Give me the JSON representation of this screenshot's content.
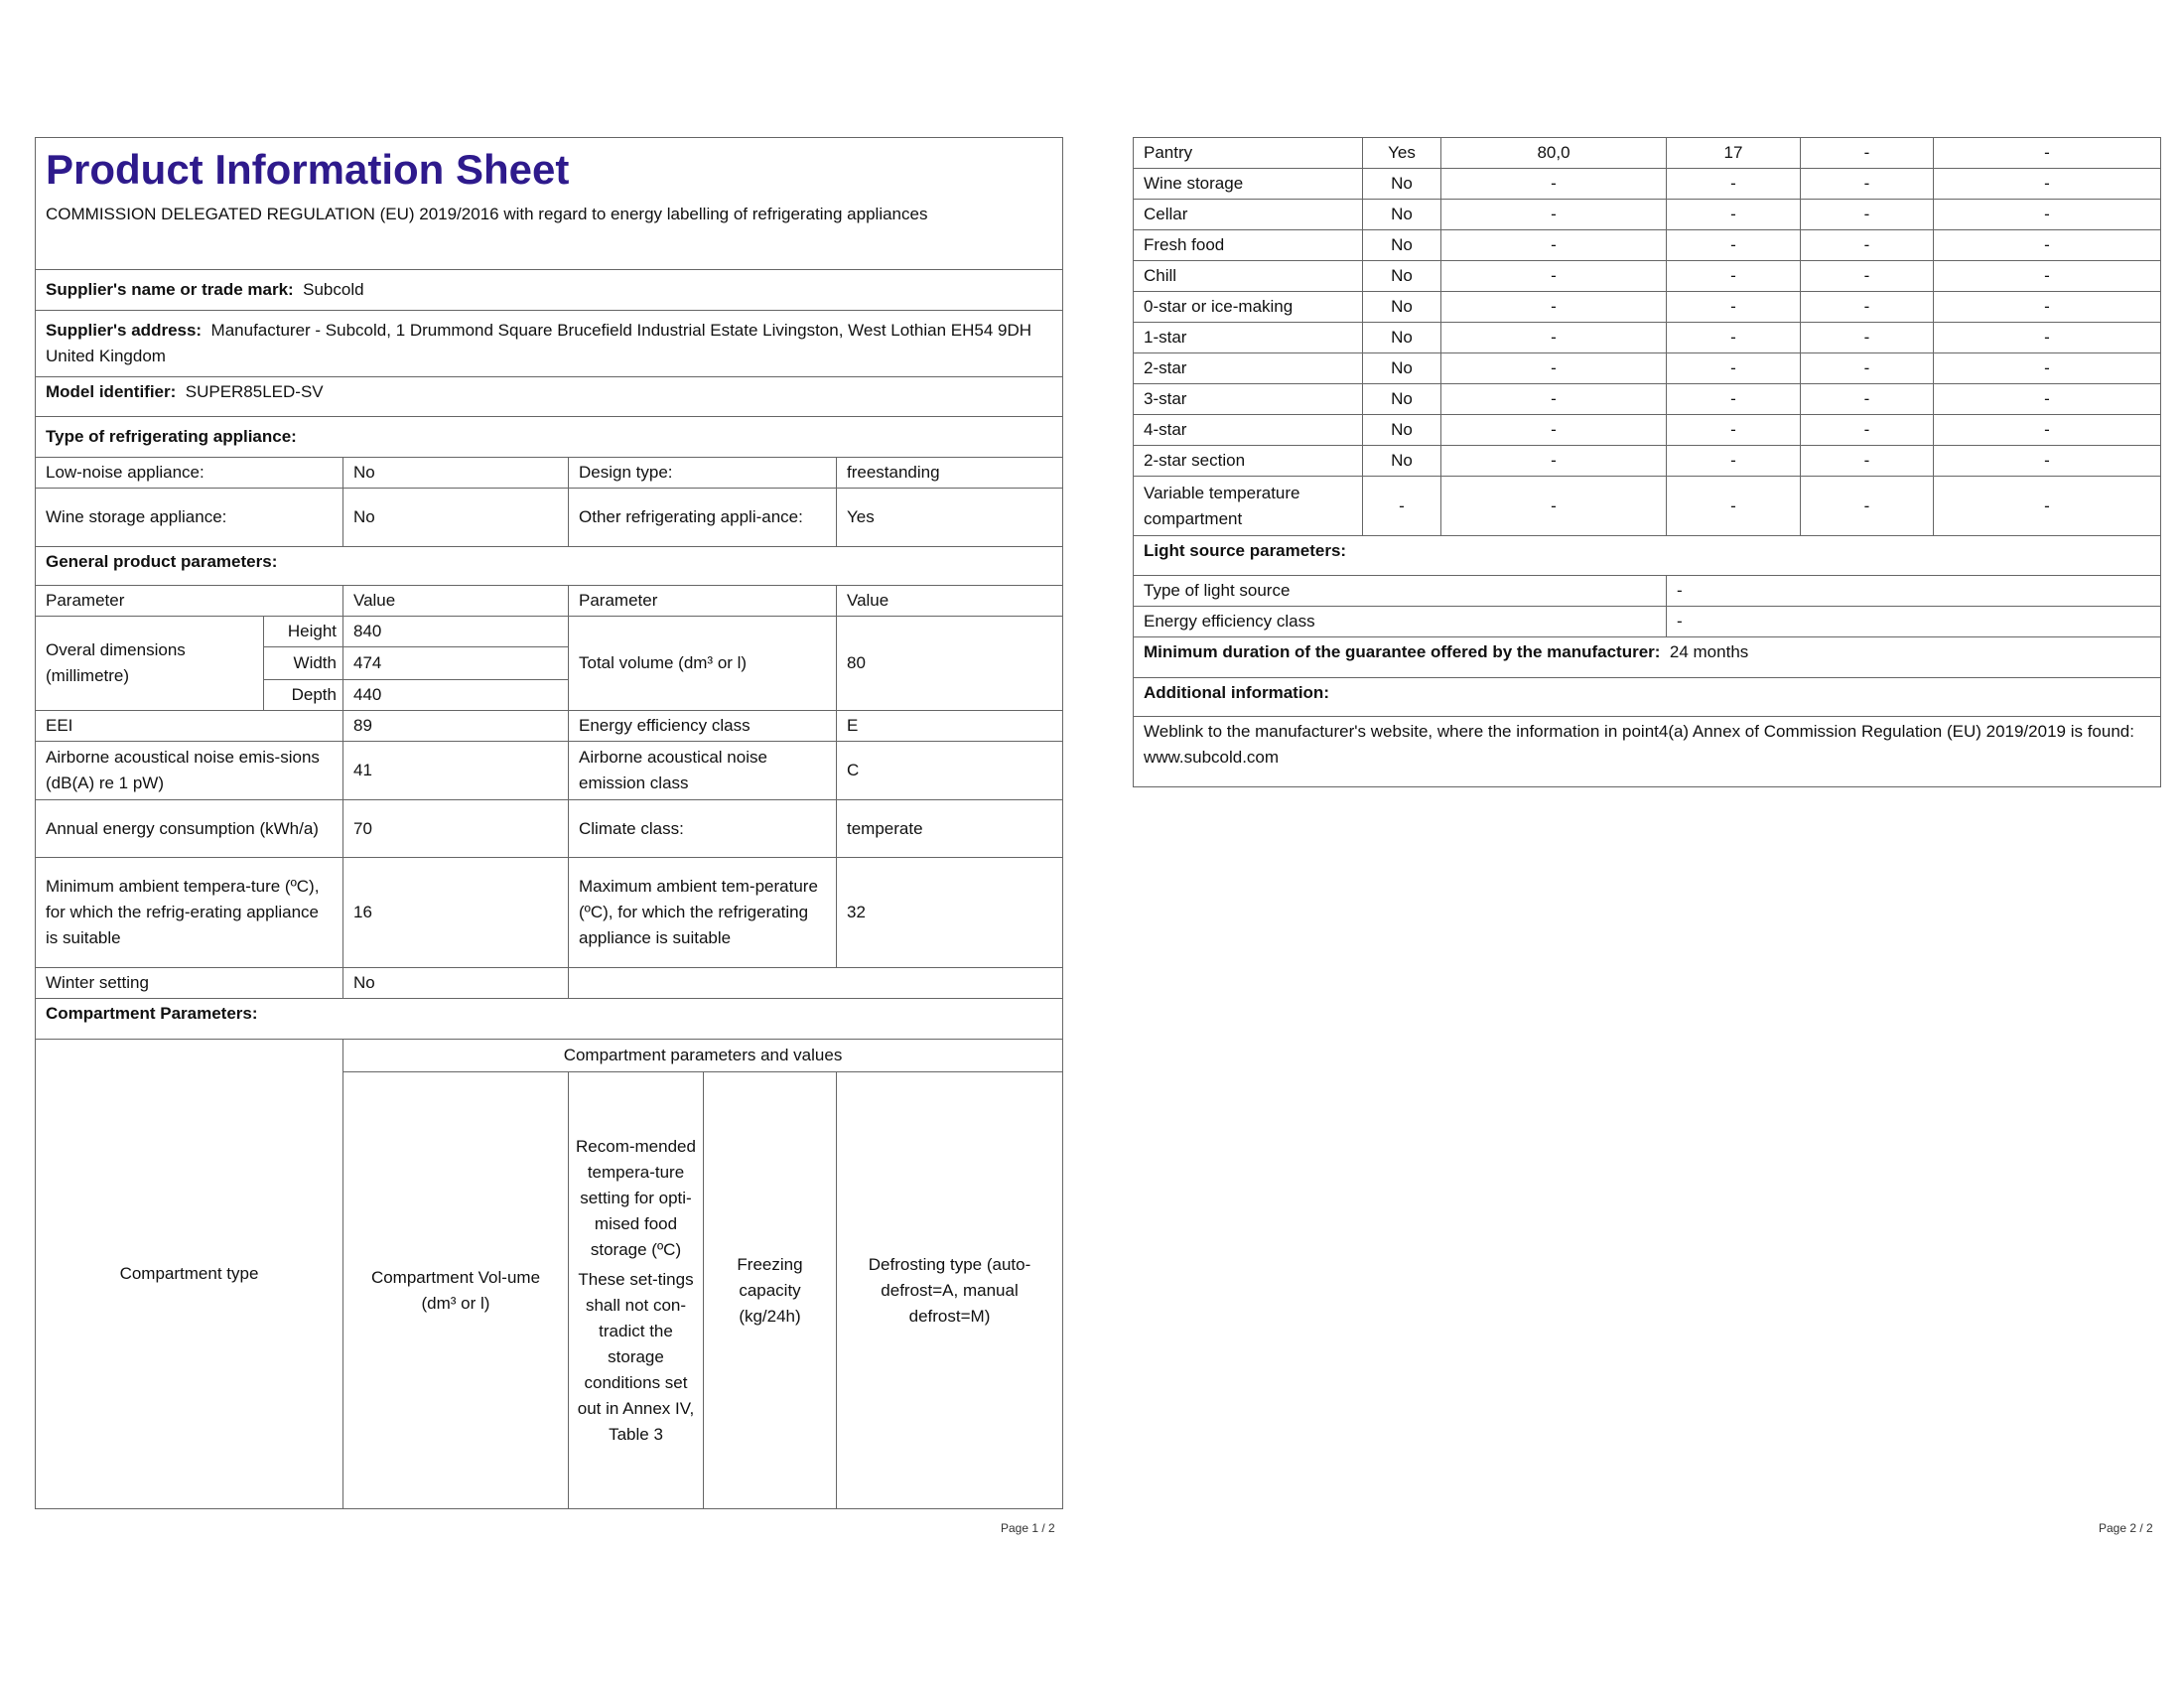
{
  "page1": {
    "title": "Product Information Sheet",
    "regulation": "COMMISSION DELEGATED REGULATION (EU) 2019/2016 with regard to energy labelling of refrigerating appliances",
    "supplier_name_label": "Supplier's name or trade mark:",
    "supplier_name": "Subcold",
    "supplier_address_label": "Supplier's address:",
    "supplier_address": "Manufacturer - Subcold, 1 Drummond Square Brucefield Industrial Estate Livingston, West Lothian EH54 9DH United Kingdom",
    "model_label": "Model identifier:",
    "model": "SUPER85LED-SV",
    "type_heading": "Type of refrigerating appliance:",
    "low_noise_label": "Low-noise appliance:",
    "low_noise": "No",
    "design_type_label": "Design type:",
    "design_type": "freestanding",
    "wine_storage_label": "Wine storage appliance:",
    "wine_storage": "No",
    "other_label": "Other refrigerating appli-ance:",
    "other": "Yes",
    "general_heading": "General product parameters:",
    "col_parameter": "Parameter",
    "col_value": "Value",
    "dimensions_label": "Overal dimensions (millimetre)",
    "height_label": "Height",
    "height": "840",
    "width_label": "Width",
    "width": "474",
    "depth_label": "Depth",
    "depth": "440",
    "volume_label": "Total volume (dm³ or l)",
    "volume": "80",
    "eei_label": "EEI",
    "eei": "89",
    "eec_label": "Energy efficiency class",
    "eec": "E",
    "noise_label": "Airborne acoustical noise emis-sions (dB(A) re 1 pW)",
    "noise": "41",
    "noise_class_label": "Airborne acoustical noise emission class",
    "noise_class": "C",
    "annual_label": "Annual energy consumption (kWh/a)",
    "annual": "70",
    "climate_label": "Climate class:",
    "climate": "temperate",
    "min_temp_label": "Minimum ambient tempera-ture (ºC), for which the refrig-erating appliance is suitable",
    "min_temp": "16",
    "max_temp_label": "Maximum ambient tem-perature (ºC), for which the refrigerating appliance is suitable",
    "max_temp": "32",
    "winter_label": "Winter setting",
    "winter": "No",
    "compartment_heading": "Compartment Parameters:",
    "comp_type_header": "Compartment type",
    "comp_values_header": "Compartment parameters and values",
    "comp_volume_header": "Compartment Vol-ume (dm³ or l)",
    "comp_temp_header": "Recom-mended tempera-ture setting for opti-mised food storage (ºC)",
    "comp_temp_note": "These set-tings shall not con-tradict the storage conditions set out in Annex IV, Table 3",
    "comp_freezing_header": "Freezing capacity (kg/24h)",
    "comp_defrost_header": "Defrosting type (auto-defrost=A, manual defrost=M)",
    "page_number": "Page 1 / 2"
  },
  "page2": {
    "compartments": [
      {
        "type": "Pantry",
        "present": "Yes",
        "volume": "80,0",
        "temp": "17",
        "freezing": "-",
        "defrost": "-"
      },
      {
        "type": "Wine storage",
        "present": "No",
        "volume": "-",
        "temp": "-",
        "freezing": "-",
        "defrost": "-"
      },
      {
        "type": "Cellar",
        "present": "No",
        "volume": "-",
        "temp": "-",
        "freezing": "-",
        "defrost": "-"
      },
      {
        "type": "Fresh food",
        "present": "No",
        "volume": "-",
        "temp": "-",
        "freezing": "-",
        "defrost": "-"
      },
      {
        "type": "Chill",
        "present": "No",
        "volume": "-",
        "temp": "-",
        "freezing": "-",
        "defrost": "-"
      },
      {
        "type": "0-star or ice-making",
        "present": "No",
        "volume": "-",
        "temp": "-",
        "freezing": "-",
        "defrost": "-"
      },
      {
        "type": "1-star",
        "present": "No",
        "volume": "-",
        "temp": "-",
        "freezing": "-",
        "defrost": "-"
      },
      {
        "type": "2-star",
        "present": "No",
        "volume": "-",
        "temp": "-",
        "freezing": "-",
        "defrost": "-"
      },
      {
        "type": "3-star",
        "present": "No",
        "volume": "-",
        "temp": "-",
        "freezing": "-",
        "defrost": "-"
      },
      {
        "type": "4-star",
        "present": "No",
        "volume": "-",
        "temp": "-",
        "freezing": "-",
        "defrost": "-"
      },
      {
        "type": "2-star section",
        "present": "No",
        "volume": "-",
        "temp": "-",
        "freezing": "-",
        "defrost": "-"
      },
      {
        "type": "Variable temperature compartment",
        "present": "-",
        "volume": "-",
        "temp": "-",
        "freezing": "-",
        "defrost": "-"
      }
    ],
    "light_heading": "Light source parameters:",
    "light_type_label": "Type of light source",
    "light_type": "-",
    "light_class_label": "Energy efficiency class",
    "light_class": "-",
    "guarantee_label": "Minimum duration of the guarantee offered by the manufacturer:",
    "guarantee": "24 months",
    "additional_heading": "Additional information:",
    "weblink_text": "Weblink to the manufacturer's website, where the information in point4(a) Annex of Commission Regulation (EU) 2019/2019 is found:",
    "weblink": "www.subcold.com",
    "page_number": "Page 2 / 2"
  }
}
